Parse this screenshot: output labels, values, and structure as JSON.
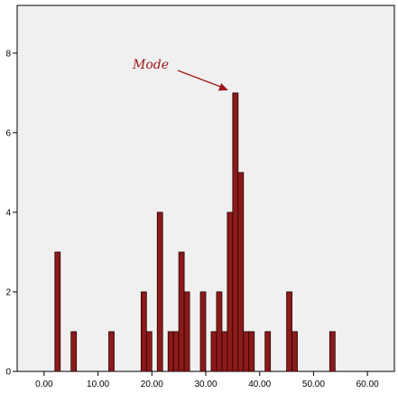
{
  "chart_data": {
    "type": "bar",
    "title": "",
    "xlabel": "",
    "ylabel": "",
    "xlim": [
      -5,
      65
    ],
    "ylim": [
      0,
      9.2
    ],
    "x_ticks": [
      0,
      10,
      20,
      30,
      40,
      50,
      60
    ],
    "x_tick_labels": [
      "0.00",
      "10.00",
      "20.00",
      "30.00",
      "40.00",
      "50.00",
      "60.00"
    ],
    "y_ticks": [
      0,
      2,
      4,
      6,
      8
    ],
    "y_tick_labels": [
      "0",
      "2",
      "4",
      "6",
      "8"
    ],
    "bin_width": 1,
    "x": [
      2.5,
      5.5,
      12.5,
      18.5,
      19.5,
      21.5,
      23.5,
      24.5,
      25.5,
      26.5,
      29.5,
      31.5,
      32.5,
      33.5,
      34.5,
      35.5,
      36.5,
      37.5,
      38.5,
      41.5,
      45.5,
      46.5,
      53.5
    ],
    "values": [
      3,
      1,
      1,
      2,
      1,
      4,
      1,
      1,
      3,
      2,
      2,
      1,
      2,
      1,
      4,
      7,
      5,
      1,
      1,
      1,
      2,
      1,
      1
    ],
    "grid": false,
    "annotation": {
      "text": "Mode",
      "target_x": 35.5,
      "target_y": 7
    },
    "colors": {
      "bar_fill": "#8b1a1a",
      "bar_stroke": "#2a0000",
      "plot_background": "#f0f0f0",
      "annotation": "#a01818"
    }
  }
}
